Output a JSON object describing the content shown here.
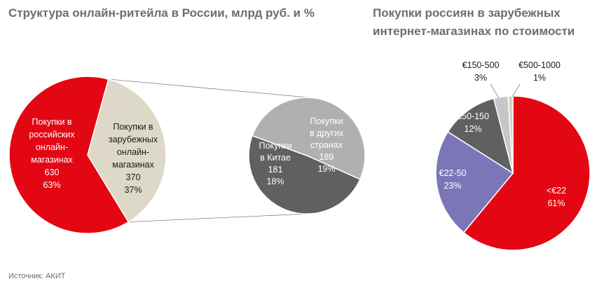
{
  "source": "Источник: АКИТ",
  "colors": {
    "red": "#e30613",
    "beige": "#ddd8c8",
    "dark_gray": "#606060",
    "light_gray": "#b0b0b0",
    "purple": "#7b76b8",
    "silver": "#c6c6c6",
    "pale": "#d8d0c0"
  },
  "chart_data": [
    {
      "type": "pie",
      "title": "Структура онлайн-ритейла в России, млрд руб. и %",
      "slices": [
        {
          "label": [
            "Покупки в",
            "российских",
            "онлайн-",
            "магазинах"
          ],
          "value": 630,
          "percent": "63%",
          "value_label": "630",
          "color": "#e30613",
          "text_color": "#ffffff"
        },
        {
          "label": [
            "Покупки в",
            "зарубежных",
            "онлайн-",
            "магазинах"
          ],
          "value": 370,
          "percent": "37%",
          "value_label": "370",
          "color": "#ddd8c8",
          "text_color": "#1a1a1a"
        }
      ]
    },
    {
      "type": "pie",
      "title": "",
      "slices": [
        {
          "label": [
            "Покупки",
            "в Китае"
          ],
          "value": 181,
          "percent": "18%",
          "value_label": "181",
          "color": "#606060",
          "text_color": "#ffffff"
        },
        {
          "label": [
            "Покупки",
            "в других",
            "странах"
          ],
          "value": 189,
          "percent": "19%",
          "value_label": "189",
          "color": "#b0b0b0",
          "text_color": "#ffffff"
        }
      ]
    },
    {
      "type": "pie",
      "title": "Покупки россиян в зарубежных интернет-магазинах по стоимости",
      "slices": [
        {
          "label": [
            "<€22"
          ],
          "value": 61,
          "percent": "61%",
          "color": "#e30613",
          "text_color": "#ffffff"
        },
        {
          "label": [
            "€22-50"
          ],
          "value": 23,
          "percent": "23%",
          "color": "#7b76b8",
          "text_color": "#ffffff"
        },
        {
          "label": [
            "€50-150"
          ],
          "value": 12,
          "percent": "12%",
          "color": "#606060",
          "text_color": "#ffffff"
        },
        {
          "label": [
            "€150-500"
          ],
          "value": 3,
          "percent": "3%",
          "color": "#c6c6c6",
          "text_color": "#1a1a1a"
        },
        {
          "label": [
            "€500-1000"
          ],
          "value": 1,
          "percent": "1%",
          "color": "#d8d0c0",
          "text_color": "#1a1a1a"
        }
      ]
    }
  ]
}
